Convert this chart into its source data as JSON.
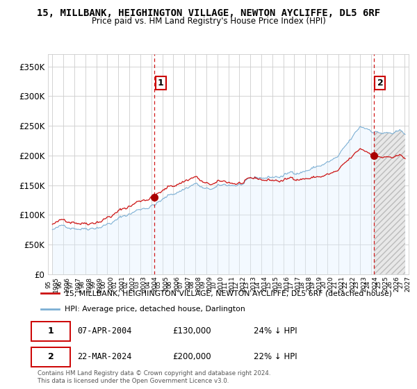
{
  "title": "15, MILLBANK, HEIGHINGTON VILLAGE, NEWTON AYCLIFFE, DL5 6RF",
  "subtitle": "Price paid vs. HM Land Registry's House Price Index (HPI)",
  "hpi_label": "HPI: Average price, detached house, Darlington",
  "property_label": "15, MILLBANK, HEIGHINGTON VILLAGE, NEWTON AYCLIFFE, DL5 6RF (detached house)",
  "hpi_color": "#7bafd4",
  "hpi_fill_color": "#ddeeff",
  "property_color": "#cc1111",
  "marker_color": "#aa0000",
  "vline_color": "#cc0000",
  "annotation_box_color": "#cc0000",
  "background_color": "#ffffff",
  "grid_color": "#cccccc",
  "ylim": [
    0,
    370000
  ],
  "yticks": [
    0,
    50000,
    100000,
    150000,
    200000,
    250000,
    300000,
    350000
  ],
  "ytick_labels": [
    "£0",
    "£50K",
    "£100K",
    "£150K",
    "£200K",
    "£250K",
    "£300K",
    "£350K"
  ],
  "xlim_left": 1994.6,
  "xlim_right": 2027.4,
  "purchase1_date": 2004.27,
  "purchase1_price": 130000,
  "purchase1_label": "1",
  "purchase2_date": 2024.23,
  "purchase2_price": 200000,
  "purchase2_label": "2",
  "table_row1": [
    "1",
    "07-APR-2004",
    "£130,000",
    "24% ↓ HPI"
  ],
  "table_row2": [
    "2",
    "22-MAR-2024",
    "£200,000",
    "22% ↓ HPI"
  ],
  "footer": "Contains HM Land Registry data © Crown copyright and database right 2024.\nThis data is licensed under the Open Government Licence v3.0."
}
